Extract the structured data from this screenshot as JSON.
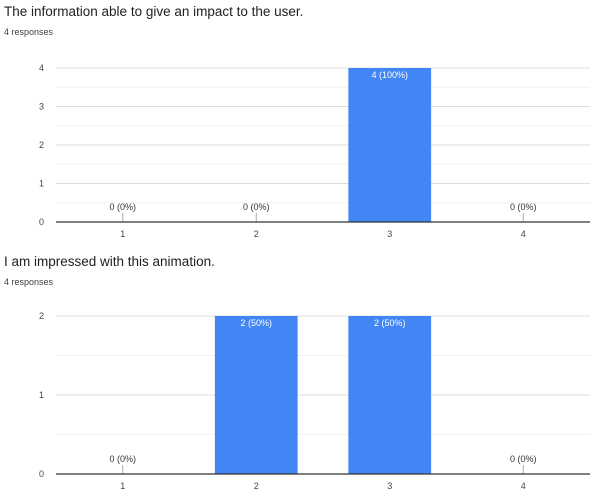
{
  "questions": [
    {
      "title": "The information able to give an impact to the user.",
      "responses": "4 responses"
    },
    {
      "title": "I am impressed with this animation.",
      "responses": "4 responses"
    }
  ],
  "colors": {
    "bar": "#4285f4",
    "grid": "#e6e6e6",
    "axis": "#333333",
    "label_outside": "#333333",
    "label_inside": "#ffffff"
  },
  "chart_data": [
    {
      "type": "bar",
      "title": "The information able to give an impact to the user.",
      "categories": [
        "1",
        "2",
        "3",
        "4"
      ],
      "values": [
        0,
        0,
        4,
        0
      ],
      "data_labels": [
        "0 (0%)",
        "0 (0%)",
        "4 (100%)",
        "0 (0%)"
      ],
      "y_ticks": [
        "0",
        "1",
        "2",
        "3",
        "4"
      ],
      "ylim": [
        0,
        4
      ],
      "grid": true,
      "xlabel": "",
      "ylabel": ""
    },
    {
      "type": "bar",
      "title": "I am impressed with this animation.",
      "categories": [
        "1",
        "2",
        "3",
        "4"
      ],
      "values": [
        0,
        2,
        2,
        0
      ],
      "data_labels": [
        "0 (0%)",
        "2 (50%)",
        "2 (50%)",
        "0 (0%)"
      ],
      "y_ticks": [
        "0",
        "1",
        "2"
      ],
      "ylim": [
        0,
        2
      ],
      "grid": true,
      "xlabel": "",
      "ylabel": ""
    }
  ]
}
